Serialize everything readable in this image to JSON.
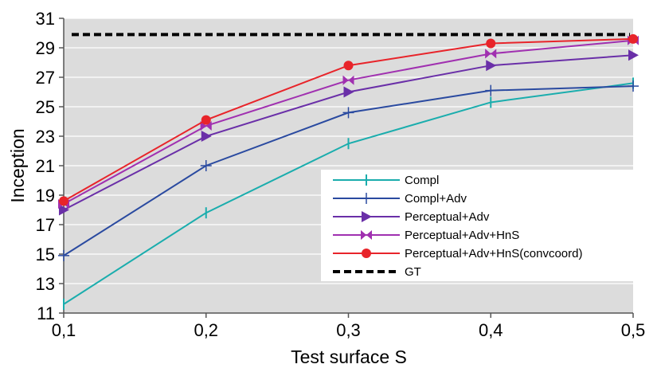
{
  "chart_data": {
    "type": "line",
    "title": "",
    "xlabel": "Test surface S",
    "ylabel": "Inception",
    "x": [
      0.1,
      0.2,
      0.3,
      0.4,
      0.5
    ],
    "x_tick_labels": [
      "0,1",
      "0,2",
      "0,3",
      "0,4",
      "0,5"
    ],
    "ylim": [
      11,
      31
    ],
    "y_ticks": [
      11,
      13,
      15,
      17,
      19,
      21,
      23,
      25,
      27,
      29,
      31
    ],
    "y_tick_labels": [
      "11",
      "13",
      "15",
      "17",
      "19",
      "21",
      "23",
      "25",
      "27",
      "29",
      "31"
    ],
    "grid": true,
    "legend_position": "lower-right",
    "series": [
      {
        "name": "Compl",
        "values": [
          11.6,
          17.8,
          22.5,
          25.3,
          26.6
        ],
        "color": "#1AADAD",
        "marker": "vbar"
      },
      {
        "name": "Compl+Adv",
        "values": [
          14.9,
          21.0,
          24.6,
          26.1,
          26.4
        ],
        "color": "#2A4AA0",
        "marker": "plus"
      },
      {
        "name": "Perceptual+Adv",
        "values": [
          18.0,
          23.0,
          26.0,
          27.8,
          28.5
        ],
        "color": "#6A2FA8",
        "marker": "triangle-right"
      },
      {
        "name": "Perceptual+Adv+HnS",
        "values": [
          18.4,
          23.7,
          26.8,
          28.6,
          29.5
        ],
        "color": "#A030B0",
        "marker": "bowtie"
      },
      {
        "name": "Perceptual+Adv+HnS(convcoord)",
        "values": [
          18.6,
          24.1,
          27.8,
          29.3,
          29.6
        ],
        "color": "#E8242A",
        "marker": "circle"
      },
      {
        "name": "GT",
        "values": [
          29.9,
          29.9,
          29.9,
          29.9,
          29.9
        ],
        "color": "#000000",
        "marker": "none",
        "dashed": true
      }
    ]
  }
}
